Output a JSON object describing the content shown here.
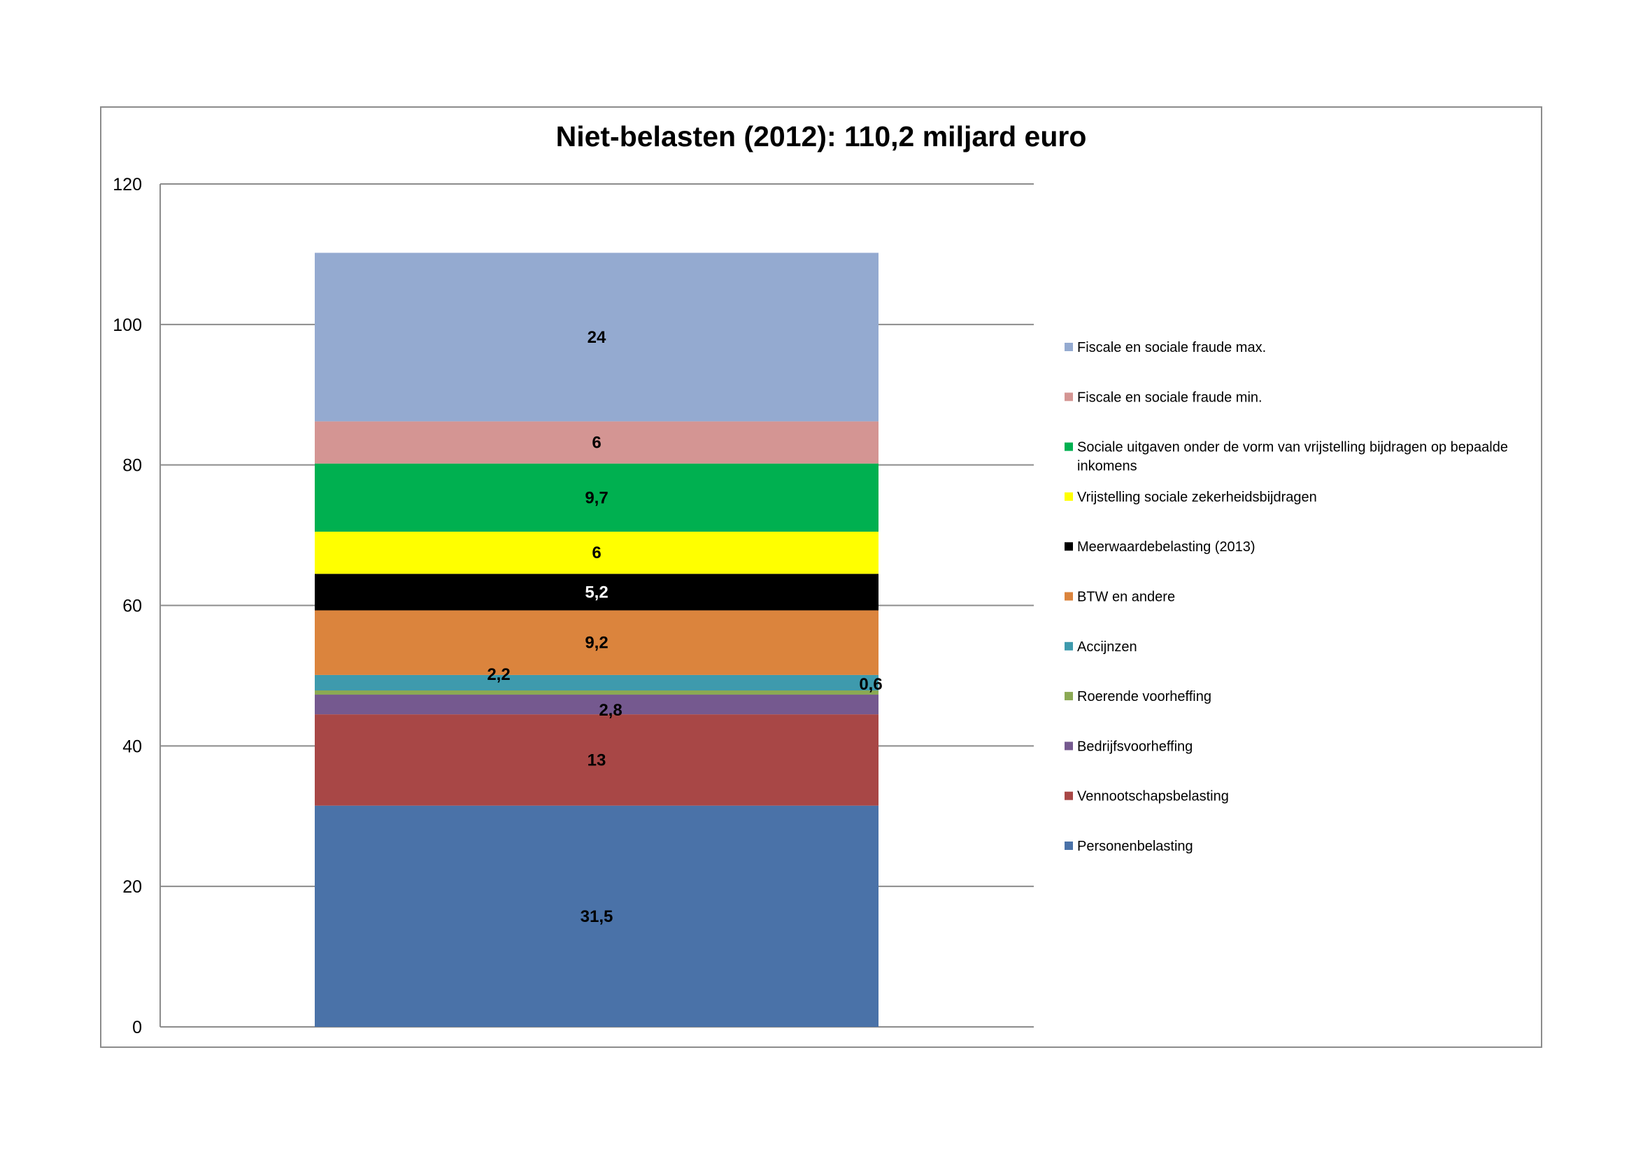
{
  "chart_data": {
    "type": "bar",
    "stacked": true,
    "title": "Niet-belasten (2012): 110,2 miljard euro",
    "xlabel": "",
    "ylabel": "",
    "ylim": [
      0,
      120
    ],
    "yticks": [
      0,
      20,
      40,
      60,
      80,
      100,
      120
    ],
    "grid": true,
    "legend_position": "right",
    "categories": [
      ""
    ],
    "series": [
      {
        "name": "Personenbelasting",
        "values": [
          31.5
        ],
        "label": "31,5",
        "color": "#4A72A8"
      },
      {
        "name": "Vennootschapsbelasting",
        "values": [
          13
        ],
        "label": "13",
        "color": "#A84746"
      },
      {
        "name": "Bedrijfsvoorheffing",
        "values": [
          2.8
        ],
        "label": "2,8",
        "color": "#75598F"
      },
      {
        "name": "Roerende voorheffing",
        "values": [
          0.6
        ],
        "label": "0,6",
        "color": "#8BA954"
      },
      {
        "name": "Accijnzen",
        "values": [
          2.2
        ],
        "label": "2,2",
        "color": "#3E9AAD"
      },
      {
        "name": "BTW en andere",
        "values": [
          9.2
        ],
        "label": "9,2",
        "color": "#DB843D"
      },
      {
        "name": "Meerwaardebelasting (2013)",
        "values": [
          5.2
        ],
        "label": "5,2",
        "color": "#000000"
      },
      {
        "name": "Vrijstelling sociale zekerheidsbijdragen",
        "values": [
          6
        ],
        "label": "6",
        "color": "#FFFF00"
      },
      {
        "name": "Sociale uitgaven onder de vorm van vrijstelling bijdragen op bepaalde inkomens",
        "values": [
          9.7
        ],
        "label": "9,7",
        "color": "#00B050"
      },
      {
        "name": "Fiscale en sociale fraude min.",
        "values": [
          6
        ],
        "label": "6",
        "color": "#D49593"
      },
      {
        "name": "Fiscale en sociale fraude max.",
        "values": [
          24
        ],
        "label": "24",
        "color": "#94AAD0"
      }
    ]
  }
}
